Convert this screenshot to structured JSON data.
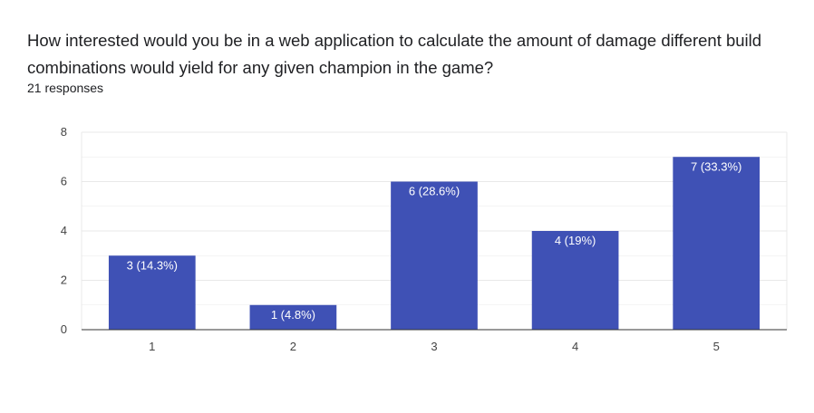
{
  "question": {
    "title": "How interested would you be in a web application to calculate the amount of damage different build combinations would yield for any given champion in the game?",
    "responses": "21 responses"
  },
  "colors": {
    "bar": "#3f51b5",
    "grid": "#e8e8e8",
    "axis": "#333333"
  },
  "chart_data": {
    "type": "bar",
    "categories": [
      "1",
      "2",
      "3",
      "4",
      "5"
    ],
    "values": [
      3,
      1,
      6,
      4,
      7
    ],
    "data_labels": [
      "3 (14.3%)",
      "1 (4.8%)",
      "6 (28.6%)",
      "4 (19%)",
      "7 (33.3%)"
    ],
    "ylim": [
      0,
      8
    ],
    "yticks": [
      0,
      2,
      4,
      6,
      8
    ],
    "grid": true
  }
}
